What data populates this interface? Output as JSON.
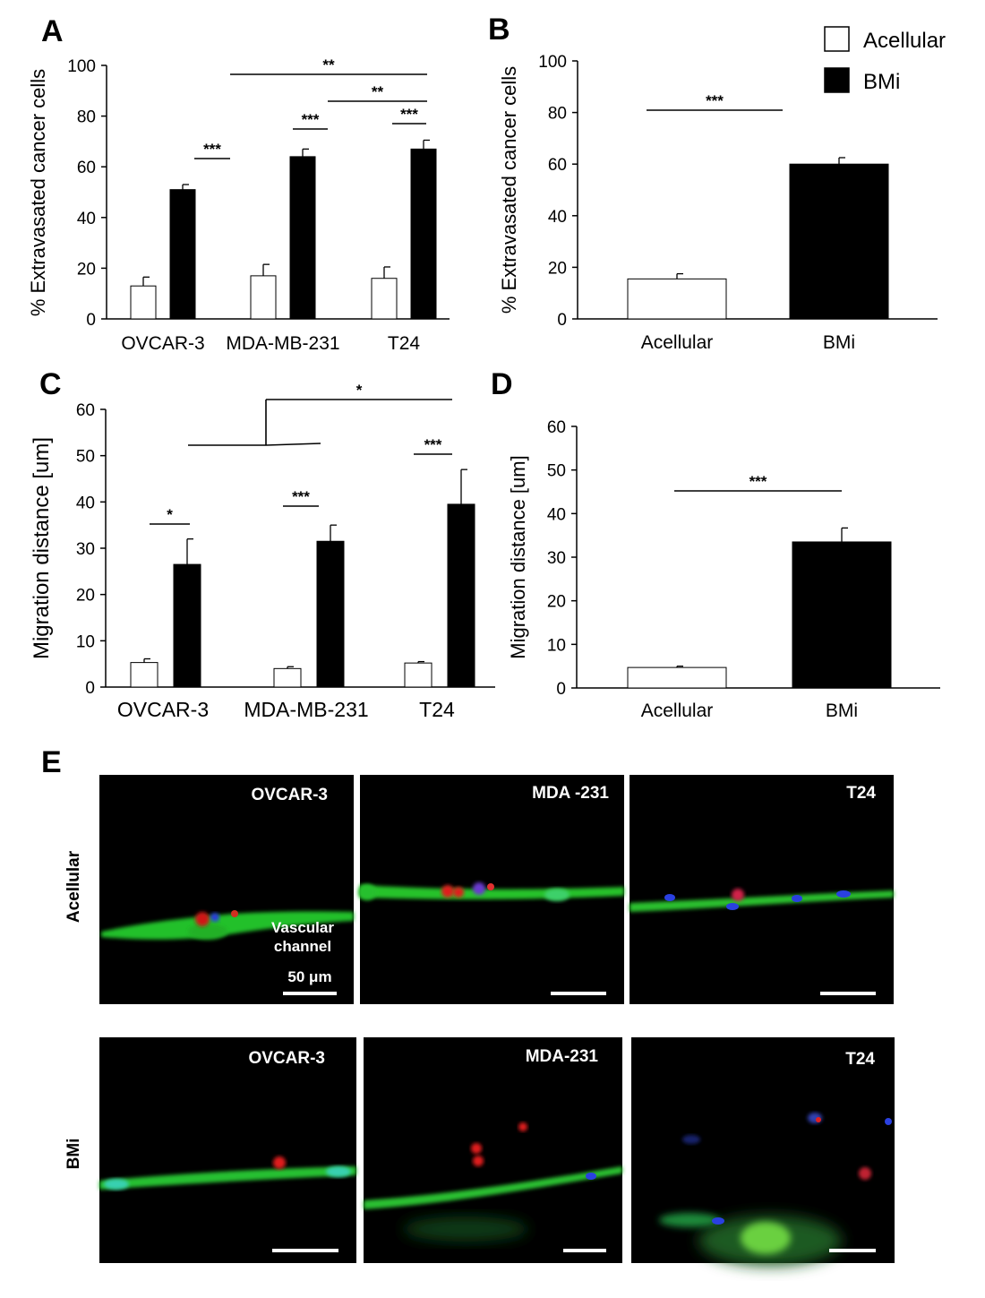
{
  "figure": {
    "panels": {
      "A": "A",
      "B": "B",
      "C": "C",
      "D": "D",
      "E": "E"
    },
    "legend": {
      "acellular": {
        "label": "Acellular",
        "color": "#ffffff"
      },
      "bmi": {
        "label": "BMi",
        "color": "#000000"
      }
    }
  },
  "chart_data": [
    {
      "id": "A",
      "type": "bar",
      "ylabel": "% Extravasated cancer cells",
      "ylim": [
        0,
        100
      ],
      "yticks": [
        0,
        20,
        40,
        60,
        80,
        100
      ],
      "categories": [
        "OVCAR-3",
        "MDA-MB-231",
        "T24"
      ],
      "series": [
        {
          "name": "Acellular",
          "values": [
            13,
            17,
            16
          ],
          "errors": [
            3.5,
            4.5,
            4.5
          ]
        },
        {
          "name": "BMi",
          "values": [
            51,
            64,
            67
          ],
          "errors": [
            2,
            3,
            3.5
          ]
        }
      ],
      "significance": [
        {
          "label": "***",
          "between": "OVCAR-3 Acellular vs BMi"
        },
        {
          "label": "***",
          "between": "MDA-MB-231 Acellular vs BMi"
        },
        {
          "label": "***",
          "between": "T24 Acellular vs BMi"
        },
        {
          "label": "**",
          "between": "MDA-MB-231 BMi vs T24 BMi"
        },
        {
          "label": "**",
          "between": "OVCAR-3 BMi vs T24 BMi"
        }
      ]
    },
    {
      "id": "B",
      "type": "bar",
      "ylabel": "% Extravasated cancer cells",
      "ylim": [
        0,
        100
      ],
      "yticks": [
        0,
        20,
        40,
        60,
        80,
        100
      ],
      "categories": [
        "Acellular",
        "BMi"
      ],
      "values": [
        15.5,
        60
      ],
      "errors": [
        2,
        2.5
      ],
      "significance": [
        {
          "label": "***",
          "between": "Acellular vs BMi"
        }
      ]
    },
    {
      "id": "C",
      "type": "bar",
      "ylabel": "Migration distance [um]",
      "ylim": [
        0,
        60
      ],
      "yticks": [
        0,
        10,
        20,
        30,
        40,
        50,
        60
      ],
      "categories": [
        "OVCAR-3",
        "MDA-MB-231",
        "T24"
      ],
      "series": [
        {
          "name": "Acellular",
          "values": [
            5.3,
            4,
            5.2
          ],
          "errors": [
            0.8,
            0.4,
            0.3
          ]
        },
        {
          "name": "BMi",
          "values": [
            26.5,
            31.5,
            39.5
          ],
          "errors": [
            5.5,
            3.5,
            7.5
          ]
        }
      ],
      "significance": [
        {
          "label": "*",
          "between": "OVCAR-3 Acellular vs BMi"
        },
        {
          "label": "***",
          "between": "MDA-MB-231 Acellular vs BMi"
        },
        {
          "label": "***",
          "between": "T24 Acellular vs BMi"
        },
        {
          "label": "*",
          "between": "OVCAR-3 & MDA-MB-231 BMi vs T24 BMi"
        }
      ]
    },
    {
      "id": "D",
      "type": "bar",
      "ylabel": "Migration distance [um]",
      "ylim": [
        0,
        60
      ],
      "yticks": [
        0,
        10,
        20,
        30,
        40,
        50,
        60
      ],
      "categories": [
        "Acellular",
        "BMi"
      ],
      "values": [
        4.7,
        33.5
      ],
      "errors": [
        0.3,
        3.2
      ],
      "significance": [
        {
          "label": "***",
          "between": "Acellular vs BMi"
        }
      ]
    }
  ],
  "micrographs": {
    "rows": [
      "Acellular",
      "BMi"
    ],
    "acellular_labels": [
      "OVCAR-3",
      "MDA  -231",
      "T24"
    ],
    "bmi_labels": [
      "OVCAR-3",
      "MDA-231",
      "T24"
    ],
    "channel_label_line1": "Vascular",
    "channel_label_line2": "channel",
    "scale_label": "50 μm"
  }
}
